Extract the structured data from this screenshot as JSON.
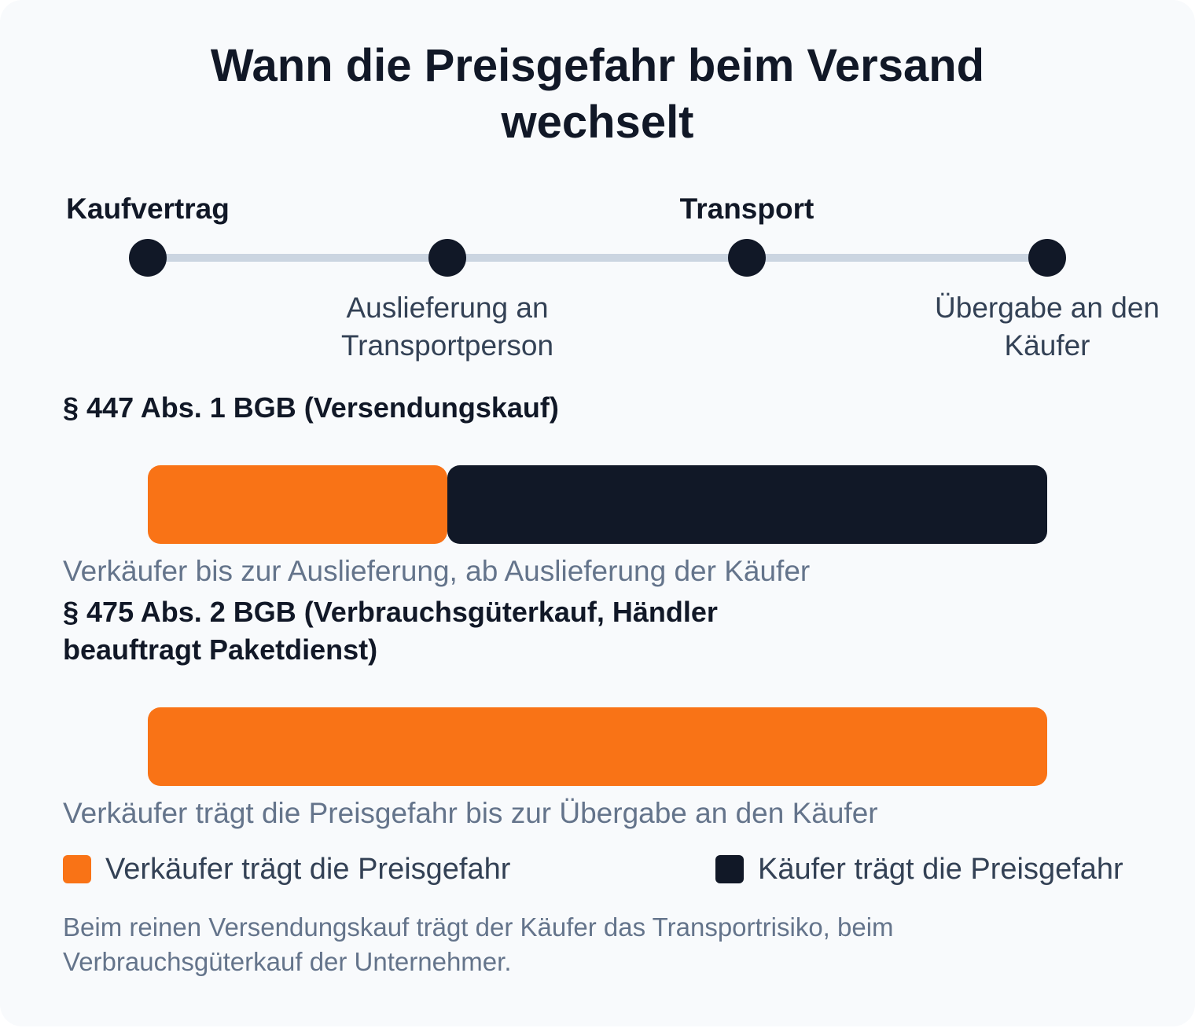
{
  "title": "Wann die Preisgefahr beim Versand wechselt",
  "colors": {
    "seller": "#f97316",
    "buyer": "#111827",
    "track": "#cbd5e1"
  },
  "timeline": {
    "stages": [
      {
        "label": "Kaufvertrag",
        "label_position": "top"
      },
      {
        "label": "Auslieferung an Transportperson",
        "label_position": "bottom"
      },
      {
        "label": "Transport",
        "label_position": "top"
      },
      {
        "label": "Übergabe an den Käufer",
        "label_position": "bottom"
      }
    ]
  },
  "rules": [
    {
      "title": "§ 447 Abs. 1 BGB (Versendungskauf)",
      "caption": "Verkäufer bis zur Auslieferung, ab Auslieferung der Käufer",
      "segments": [
        {
          "party": "seller",
          "from_stage": 0,
          "to_stage": 1
        },
        {
          "party": "buyer",
          "from_stage": 1,
          "to_stage": 3
        }
      ]
    },
    {
      "title": "§ 475 Abs. 2 BGB (Verbrauchsgüterkauf, Händler beauftragt Paketdienst)",
      "caption": "Verkäufer trägt die Preisgefahr bis zur Übergabe an den Käufer",
      "segments": [
        {
          "party": "seller",
          "from_stage": 0,
          "to_stage": 3
        }
      ]
    }
  ],
  "legend": {
    "seller": "Verkäufer trägt die Preisgefahr",
    "buyer": "Käufer trägt die Preisgefahr"
  },
  "note": "Beim reinen Versendungskauf trägt der Käufer das Transportrisiko, beim Verbrauchsgüterkauf der Unternehmer."
}
